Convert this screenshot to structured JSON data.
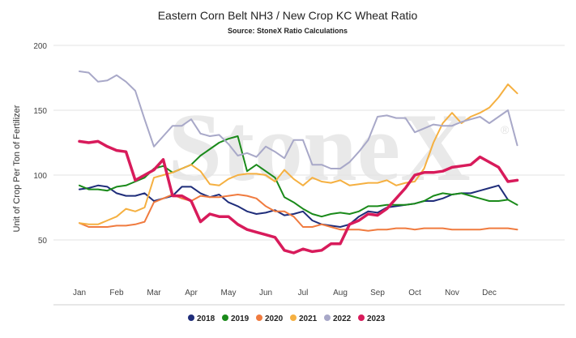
{
  "chart_data": {
    "type": "line",
    "title": "Eastern Corn Belt NH3 / New Crop KC Wheat Ratio",
    "subtitle": "Source: StoneX Ratio Calculations",
    "ylabel": "Unit of Crop Per Ton of Fertilizer",
    "xlabel": "",
    "ylim": [
      0,
      200
    ],
    "yticks": [
      50,
      100,
      150,
      200
    ],
    "grid": true,
    "legend_position": "bottom",
    "watermark": "StoneX",
    "months": [
      "Jan",
      "Feb",
      "Mar",
      "Apr",
      "May",
      "Jun",
      "Jul",
      "Aug",
      "Sep",
      "Oct",
      "Nov",
      "Dec"
    ],
    "series": [
      {
        "name": "2018",
        "color": "#1f2d7a",
        "x": [
          1.0,
          1.25,
          1.5,
          1.75,
          2.0,
          2.25,
          2.5,
          2.75,
          3.0,
          3.25,
          3.5,
          3.75,
          4.0,
          4.25,
          4.5,
          4.75,
          5.0,
          5.25,
          5.5,
          5.75,
          6.0,
          6.25,
          6.5,
          6.75,
          7.0,
          7.25,
          7.5,
          7.75,
          8.0,
          8.25,
          8.5,
          8.75,
          9.0,
          9.25,
          9.5,
          9.75,
          10.0,
          10.25,
          10.5,
          10.75,
          11.0,
          11.25,
          11.5,
          11.75,
          12.0,
          12.25,
          12.5
        ],
        "values": [
          89,
          90,
          92,
          91,
          86,
          84,
          84,
          86,
          80,
          82,
          84,
          91,
          91,
          86,
          83,
          85,
          79,
          76,
          72,
          70,
          71,
          73,
          69,
          70,
          72,
          65,
          62,
          61,
          60,
          62,
          68,
          72,
          71,
          75,
          76,
          77,
          78,
          80,
          80,
          82,
          85,
          86,
          86,
          88,
          90,
          92,
          81
        ]
      },
      {
        "name": "2019",
        "color": "#1a8a1a",
        "x": [
          1.0,
          1.25,
          1.5,
          1.75,
          2.0,
          2.25,
          2.5,
          2.75,
          3.0,
          3.25,
          3.5,
          3.75,
          4.0,
          4.25,
          4.5,
          4.75,
          5.0,
          5.25,
          5.5,
          5.75,
          6.0,
          6.25,
          6.5,
          6.75,
          7.0,
          7.25,
          7.5,
          7.75,
          8.0,
          8.25,
          8.5,
          8.75,
          9.0,
          9.25,
          9.5,
          9.75,
          10.0,
          10.25,
          10.5,
          10.75,
          11.0,
          11.25,
          11.5,
          11.75,
          12.0,
          12.25,
          12.5,
          12.75
        ],
        "values": [
          92,
          89,
          89,
          88,
          91,
          92,
          95,
          98,
          105,
          107,
          102,
          105,
          108,
          115,
          120,
          125,
          128,
          130,
          103,
          108,
          103,
          98,
          83,
          79,
          74,
          70,
          68,
          70,
          71,
          70,
          72,
          76,
          76,
          77,
          77,
          77,
          78,
          80,
          84,
          86,
          85,
          86,
          84,
          82,
          80,
          80,
          81,
          77
        ]
      },
      {
        "name": "2020",
        "color": "#f07b3f",
        "x": [
          1.0,
          1.25,
          1.5,
          1.75,
          2.0,
          2.25,
          2.5,
          2.75,
          3.0,
          3.25,
          3.5,
          3.75,
          4.0,
          4.25,
          4.5,
          4.75,
          5.0,
          5.25,
          5.5,
          5.75,
          6.0,
          6.25,
          6.5,
          6.75,
          7.0,
          7.25,
          7.5,
          7.75,
          8.0,
          8.25,
          8.5,
          8.75,
          9.0,
          9.25,
          9.5,
          9.75,
          10.0,
          10.25,
          10.5,
          10.75,
          11.0,
          11.25,
          11.5,
          11.75,
          12.0,
          12.25,
          12.5,
          12.75
        ],
        "values": [
          63,
          60,
          60,
          60,
          61,
          61,
          62,
          64,
          79,
          82,
          85,
          82,
          80,
          84,
          83,
          83,
          84,
          85,
          84,
          82,
          76,
          72,
          72,
          68,
          60,
          60,
          62,
          60,
          58,
          58,
          58,
          57,
          58,
          58,
          59,
          59,
          58,
          59,
          59,
          59,
          58,
          58,
          58,
          58,
          59,
          59,
          59,
          58
        ]
      },
      {
        "name": "2021",
        "color": "#f5b041",
        "x": [
          1.0,
          1.25,
          1.5,
          1.75,
          2.0,
          2.25,
          2.5,
          2.75,
          3.0,
          3.25,
          3.5,
          3.75,
          4.0,
          4.25,
          4.5,
          4.75,
          5.0,
          5.25,
          5.5,
          5.75,
          6.0,
          6.25,
          6.5,
          6.75,
          7.0,
          7.25,
          7.5,
          7.75,
          8.0,
          8.25,
          8.5,
          8.75,
          9.0,
          9.25,
          9.5,
          9.75,
          10.0,
          10.25,
          10.5,
          10.75,
          11.0,
          11.25,
          11.5,
          11.75,
          12.0,
          12.25,
          12.5,
          12.75
        ],
        "values": [
          63,
          62,
          62,
          65,
          68,
          74,
          72,
          75,
          98,
          100,
          102,
          105,
          108,
          103,
          93,
          92,
          97,
          100,
          101,
          101,
          100,
          95,
          104,
          97,
          92,
          98,
          95,
          94,
          96,
          92,
          93,
          94,
          94,
          96,
          92,
          94,
          95,
          105,
          125,
          140,
          148,
          140,
          145,
          148,
          152,
          160,
          170,
          163
        ]
      },
      {
        "name": "2022",
        "color": "#a8a8c8",
        "x": [
          1.0,
          1.25,
          1.5,
          1.75,
          2.0,
          2.25,
          2.5,
          2.75,
          3.0,
          3.25,
          3.5,
          3.75,
          4.0,
          4.25,
          4.5,
          4.75,
          5.0,
          5.25,
          5.5,
          5.75,
          6.0,
          6.25,
          6.5,
          6.75,
          7.0,
          7.25,
          7.5,
          7.75,
          8.0,
          8.25,
          8.5,
          8.75,
          9.0,
          9.25,
          9.5,
          9.75,
          10.0,
          10.25,
          10.5,
          10.75,
          11.0,
          11.25,
          11.5,
          11.75,
          12.0,
          12.25,
          12.5,
          12.75
        ],
        "values": [
          180,
          179,
          172,
          173,
          177,
          172,
          165,
          143,
          122,
          130,
          138,
          138,
          143,
          132,
          130,
          131,
          124,
          115,
          117,
          114,
          122,
          118,
          113,
          127,
          127,
          108,
          108,
          105,
          105,
          110,
          118,
          127,
          145,
          146,
          144,
          144,
          133,
          136,
          139,
          138,
          138,
          141,
          143,
          145,
          140,
          145,
          150,
          123
        ]
      },
      {
        "name": "2023",
        "color": "#d81b5b",
        "x": [
          1.0,
          1.25,
          1.5,
          1.75,
          2.0,
          2.25,
          2.5,
          2.75,
          3.0,
          3.25,
          3.5,
          3.75,
          4.0,
          4.25,
          4.5,
          4.75,
          5.0,
          5.25,
          5.5,
          5.75,
          6.0,
          6.25,
          6.5,
          6.75,
          7.0,
          7.25,
          7.5,
          7.75,
          8.0,
          8.25,
          8.5,
          8.75,
          9.0,
          9.25,
          9.5,
          9.75,
          10.0,
          10.25,
          10.5,
          10.75,
          11.0,
          11.25,
          11.5,
          11.75,
          12.0,
          12.25,
          12.5,
          12.75
        ],
        "values": [
          126,
          125,
          126,
          122,
          119,
          118,
          96,
          100,
          104,
          112,
          84,
          84,
          80,
          64,
          70,
          68,
          68,
          62,
          58,
          56,
          54,
          52,
          42,
          40,
          43,
          41,
          42,
          47,
          47,
          62,
          65,
          70,
          69,
          74,
          82,
          90,
          100,
          102,
          102,
          103,
          106,
          107,
          108,
          114,
          110,
          106,
          95,
          96
        ]
      }
    ]
  }
}
